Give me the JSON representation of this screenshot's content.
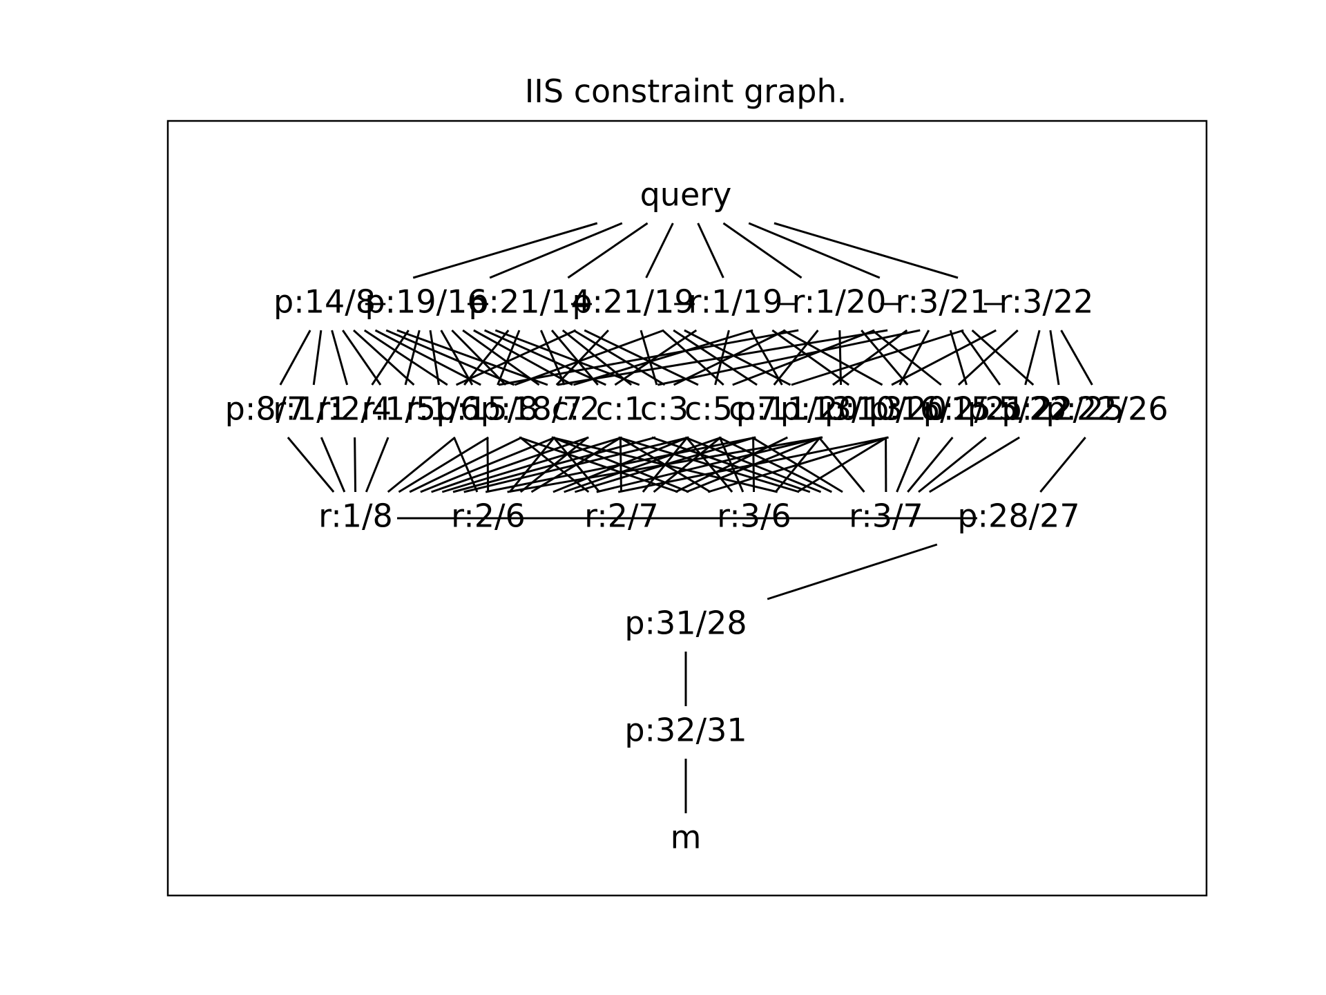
{
  "title": "IIS constraint graph.",
  "nodes": [
    {
      "id": "query",
      "label": "query"
    },
    {
      "id": "p14_8",
      "label": "p:14/8"
    },
    {
      "id": "p19_16",
      "label": "p:19/16"
    },
    {
      "id": "p21_14",
      "label": "p:21/14"
    },
    {
      "id": "p21_19",
      "label": "p:21/19"
    },
    {
      "id": "r1_19",
      "label": "r:1/19"
    },
    {
      "id": "r1_20",
      "label": "r:1/20"
    },
    {
      "id": "r3_21",
      "label": "r:3/21"
    },
    {
      "id": "r3_22",
      "label": "r:3/22"
    },
    {
      "id": "p8_7",
      "label": "p:8/7"
    },
    {
      "id": "r1_1",
      "label": "r:1/1"
    },
    {
      "id": "r2_4",
      "label": "r:2/4"
    },
    {
      "id": "r1_5",
      "label": "r:1/5"
    },
    {
      "id": "r1_6",
      "label": "r:1/6"
    },
    {
      "id": "p15_8",
      "label": "p:15/8"
    },
    {
      "id": "p18_7",
      "label": "p:18/7"
    },
    {
      "id": "c2",
      "label": "c:2"
    },
    {
      "id": "c1",
      "label": "c:1"
    },
    {
      "id": "c3",
      "label": "c:3"
    },
    {
      "id": "c5",
      "label": "c:5"
    },
    {
      "id": "c7",
      "label": "c:7"
    },
    {
      "id": "p11_20",
      "label": "p:11/20"
    },
    {
      "id": "p13_13",
      "label": "p:13/13"
    },
    {
      "id": "p10_20",
      "label": "p:10/20"
    },
    {
      "id": "p16_15",
      "label": "p:16/15"
    },
    {
      "id": "p2_21",
      "label": "p:2/21"
    },
    {
      "id": "p5_22",
      "label": "p:5/22"
    },
    {
      "id": "p22_25",
      "label": "p:22/25"
    },
    {
      "id": "p22_26",
      "label": "p:22/26"
    },
    {
      "id": "r1_8",
      "label": "r:1/8"
    },
    {
      "id": "r2_6",
      "label": "r:2/6"
    },
    {
      "id": "r2_7",
      "label": "r:2/7"
    },
    {
      "id": "r3_6",
      "label": "r:3/6"
    },
    {
      "id": "r3_7",
      "label": "r:3/7"
    },
    {
      "id": "p28_27",
      "label": "p:28/27"
    },
    {
      "id": "p31_28",
      "label": "p:31/28"
    },
    {
      "id": "p32_31",
      "label": "p:32/31"
    },
    {
      "id": "m",
      "label": "m"
    }
  ],
  "edges": [
    [
      "query",
      "p14_8"
    ],
    [
      "query",
      "p19_16"
    ],
    [
      "query",
      "p21_14"
    ],
    [
      "query",
      "p21_19"
    ],
    [
      "query",
      "r1_19"
    ],
    [
      "query",
      "r1_20"
    ],
    [
      "query",
      "r3_21"
    ],
    [
      "query",
      "r3_22"
    ],
    [
      "p14_8",
      "p19_16"
    ],
    [
      "p19_16",
      "p21_14"
    ],
    [
      "p21_14",
      "p21_19"
    ],
    [
      "p21_19",
      "r1_19"
    ],
    [
      "r1_19",
      "r1_20"
    ],
    [
      "r1_20",
      "r3_21"
    ],
    [
      "r3_21",
      "r3_22"
    ],
    [
      "p14_8",
      "p8_7"
    ],
    [
      "p14_8",
      "r1_1"
    ],
    [
      "p14_8",
      "r2_4"
    ],
    [
      "p14_8",
      "r1_5"
    ],
    [
      "p14_8",
      "r1_6"
    ],
    [
      "p14_8",
      "p15_8"
    ],
    [
      "p14_8",
      "p18_7"
    ],
    [
      "p14_8",
      "c2"
    ],
    [
      "p14_8",
      "c1"
    ],
    [
      "p19_16",
      "r2_4"
    ],
    [
      "p19_16",
      "r1_5"
    ],
    [
      "p19_16",
      "r1_6"
    ],
    [
      "p19_16",
      "p15_8"
    ],
    [
      "p19_16",
      "p18_7"
    ],
    [
      "p19_16",
      "c2"
    ],
    [
      "p19_16",
      "c1"
    ],
    [
      "p19_16",
      "c3"
    ],
    [
      "p19_16",
      "c5"
    ],
    [
      "p21_14",
      "r1_6"
    ],
    [
      "p21_14",
      "p15_8"
    ],
    [
      "p21_14",
      "c2"
    ],
    [
      "p21_14",
      "c1"
    ],
    [
      "p21_14",
      "c3"
    ],
    [
      "p21_14",
      "c5"
    ],
    [
      "p21_14",
      "c7"
    ],
    [
      "p21_19",
      "r1_5"
    ],
    [
      "p21_19",
      "p18_7"
    ],
    [
      "p21_19",
      "c3"
    ],
    [
      "p21_19",
      "c7"
    ],
    [
      "p21_19",
      "p11_20"
    ],
    [
      "p21_19",
      "p13_13"
    ],
    [
      "r1_19",
      "r1_6"
    ],
    [
      "r1_19",
      "c2"
    ],
    [
      "r1_19",
      "c5"
    ],
    [
      "r1_19",
      "p10_20"
    ],
    [
      "r1_19",
      "p16_15"
    ],
    [
      "r1_19",
      "p11_20"
    ],
    [
      "r1_20",
      "p15_8"
    ],
    [
      "r1_20",
      "c1"
    ],
    [
      "r1_20",
      "c7"
    ],
    [
      "r1_20",
      "p13_13"
    ],
    [
      "r1_20",
      "p2_21"
    ],
    [
      "r1_20",
      "p16_15"
    ],
    [
      "r3_21",
      "r2_4"
    ],
    [
      "r3_21",
      "c3"
    ],
    [
      "r3_21",
      "p11_20"
    ],
    [
      "r3_21",
      "p10_20"
    ],
    [
      "r3_21",
      "p5_22"
    ],
    [
      "r3_21",
      "p2_21"
    ],
    [
      "r3_21",
      "p22_25"
    ],
    [
      "r3_22",
      "r1_5"
    ],
    [
      "r3_22",
      "p18_7"
    ],
    [
      "r3_22",
      "c5"
    ],
    [
      "r3_22",
      "p13_13"
    ],
    [
      "r3_22",
      "p16_15"
    ],
    [
      "r3_22",
      "p5_22"
    ],
    [
      "r3_22",
      "p22_25"
    ],
    [
      "r3_22",
      "p22_26"
    ],
    [
      "p8_7",
      "r1_8"
    ],
    [
      "r1_1",
      "r1_8"
    ],
    [
      "r2_4",
      "r1_8"
    ],
    [
      "r1_5",
      "r1_8"
    ],
    [
      "r1_6",
      "r2_6"
    ],
    [
      "r1_6",
      "r3_6"
    ],
    [
      "r1_6",
      "r3_7"
    ],
    [
      "p15_8",
      "r1_8"
    ],
    [
      "p15_8",
      "r2_6"
    ],
    [
      "p15_8",
      "r2_7"
    ],
    [
      "p15_8",
      "r3_6"
    ],
    [
      "p18_7",
      "r1_8"
    ],
    [
      "p18_7",
      "r2_7"
    ],
    [
      "p18_7",
      "r3_7"
    ],
    [
      "c2",
      "r2_6"
    ],
    [
      "c2",
      "r3_6"
    ],
    [
      "c2",
      "r3_7"
    ],
    [
      "c2",
      "r1_8"
    ],
    [
      "c1",
      "r1_8"
    ],
    [
      "c1",
      "r2_7"
    ],
    [
      "c1",
      "r3_7"
    ],
    [
      "c1",
      "r2_6"
    ],
    [
      "c3",
      "r2_6"
    ],
    [
      "c3",
      "r3_6"
    ],
    [
      "c3",
      "r1_8"
    ],
    [
      "c3",
      "r3_7"
    ],
    [
      "c5",
      "r2_7"
    ],
    [
      "c5",
      "r3_7"
    ],
    [
      "c5",
      "r1_8"
    ],
    [
      "c5",
      "r3_6"
    ],
    [
      "c7",
      "r3_6"
    ],
    [
      "c7",
      "r2_6"
    ],
    [
      "c7",
      "r1_8"
    ],
    [
      "c7",
      "r2_7"
    ],
    [
      "p11_20",
      "r1_8"
    ],
    [
      "p11_20",
      "r2_6"
    ],
    [
      "p11_20",
      "r3_7"
    ],
    [
      "p13_13",
      "r2_6"
    ],
    [
      "p13_13",
      "r2_7"
    ],
    [
      "p13_13",
      "r3_6"
    ],
    [
      "p10_20",
      "r1_8"
    ],
    [
      "p10_20",
      "r2_7"
    ],
    [
      "p10_20",
      "r3_7"
    ],
    [
      "p16_15",
      "r2_6"
    ],
    [
      "p16_15",
      "r3_6"
    ],
    [
      "p16_15",
      "r3_7"
    ],
    [
      "p2_21",
      "r2_7"
    ],
    [
      "p2_21",
      "r1_8"
    ],
    [
      "p2_21",
      "r3_7"
    ],
    [
      "p5_22",
      "r3_7"
    ],
    [
      "p5_22",
      "r2_6"
    ],
    [
      "p22_25",
      "r3_7"
    ],
    [
      "p22_26",
      "p28_27"
    ],
    [
      "r1_8",
      "r2_6"
    ],
    [
      "r2_6",
      "r2_7"
    ],
    [
      "r2_7",
      "r3_6"
    ],
    [
      "r3_6",
      "r3_7"
    ],
    [
      "r1_8",
      "p28_27"
    ],
    [
      "p28_27",
      "p31_28"
    ],
    [
      "p31_28",
      "p32_31"
    ],
    [
      "p32_31",
      "m"
    ]
  ]
}
